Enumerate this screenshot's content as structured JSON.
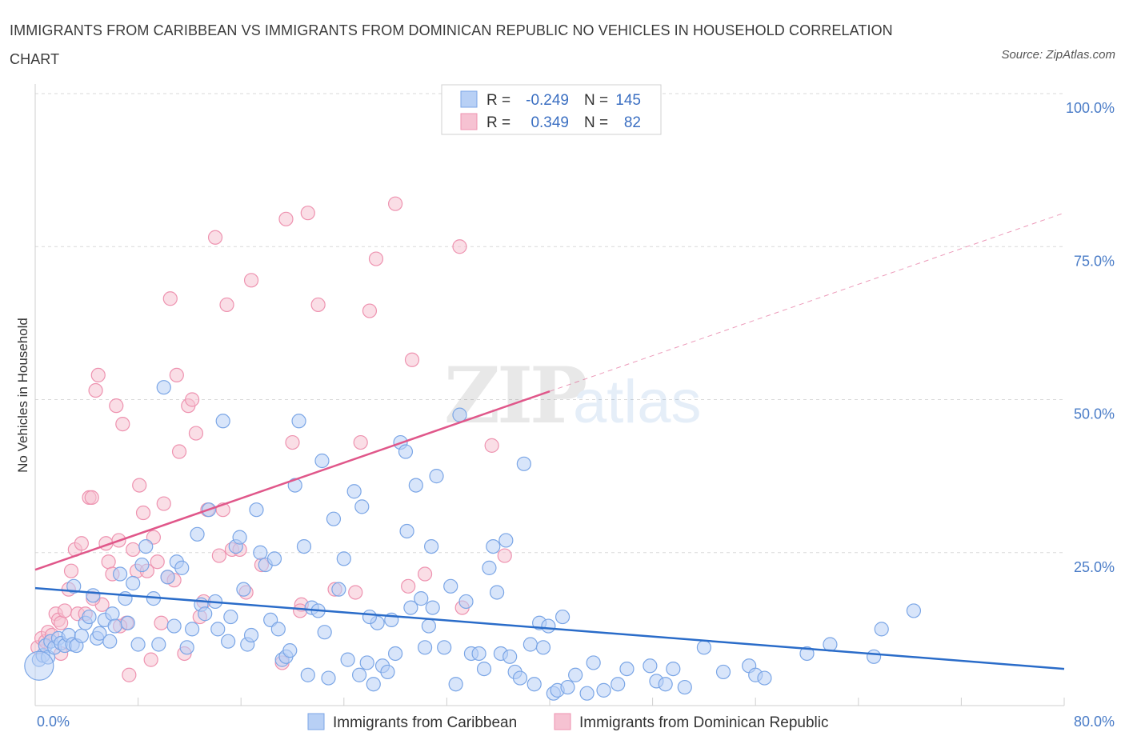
{
  "title": "IMMIGRANTS FROM CARIBBEAN VS IMMIGRANTS FROM DOMINICAN REPUBLIC NO VEHICLES IN HOUSEHOLD CORRELATION CHART",
  "source": "Source: ZipAtlas.com",
  "watermark": {
    "zip": "ZIP",
    "atlas": "atlas"
  },
  "colors": {
    "blue_fill": "#b8d0f5",
    "blue_stroke": "#7ba6e6",
    "blue_line": "#2a6cc9",
    "pink_fill": "#f6c2d2",
    "pink_stroke": "#ee93b0",
    "pink_line": "#e0578a",
    "grid": "#d9d9d9",
    "tick_text": "#4a7cc7"
  },
  "legend": {
    "rows": [
      {
        "r_label": "R =",
        "r_value": "-0.249",
        "n_label": "N =",
        "n_value": "145"
      },
      {
        "r_label": "R =",
        "r_value": "0.349",
        "n_label": "N =",
        "n_value": "82"
      }
    ]
  },
  "chart_data": {
    "type": "scatter",
    "xlabel": "",
    "ylabel": "No Vehicles in Household",
    "xlim": [
      0,
      80
    ],
    "ylim": [
      0,
      100
    ],
    "x_tick_labels": [
      "0.0%",
      "80.0%"
    ],
    "y_tick_labels": [
      "25.0%",
      "50.0%",
      "75.0%",
      "100.0%"
    ],
    "y_ticks": [
      25,
      50,
      75,
      100
    ],
    "grid": true,
    "legend_position": "top-center",
    "series": [
      {
        "name": "Immigrants from Caribbean",
        "color": "#7ba6e6",
        "trend": {
          "x0": 0,
          "y0": 19.2,
          "x1": 80,
          "y1": 6.0,
          "x_solid_end": 80
        },
        "points": [
          [
            0.3,
            7.5
          ],
          [
            0.6,
            8.2
          ],
          [
            0.8,
            9.8
          ],
          [
            1.0,
            7.9
          ],
          [
            1.2,
            10.5
          ],
          [
            1.5,
            9.5
          ],
          [
            1.8,
            11.0
          ],
          [
            2.0,
            10.2
          ],
          [
            2.3,
            9.8
          ],
          [
            2.6,
            11.5
          ],
          [
            2.9,
            10.0
          ],
          [
            3.0,
            19.5
          ],
          [
            3.2,
            9.8
          ],
          [
            3.6,
            11.4
          ],
          [
            3.9,
            13.5
          ],
          [
            4.2,
            14.5
          ],
          [
            4.5,
            18.0
          ],
          [
            4.8,
            11.0
          ],
          [
            5.0,
            11.8
          ],
          [
            5.4,
            14.0
          ],
          [
            5.8,
            10.5
          ],
          [
            6.0,
            15.0
          ],
          [
            6.2,
            13.0
          ],
          [
            6.6,
            21.5
          ],
          [
            7.0,
            17.5
          ],
          [
            7.2,
            13.5
          ],
          [
            7.6,
            20.0
          ],
          [
            8.0,
            10.0
          ],
          [
            8.3,
            23.0
          ],
          [
            8.6,
            26.0
          ],
          [
            9.2,
            17.5
          ],
          [
            9.6,
            10.0
          ],
          [
            10.0,
            52.0
          ],
          [
            10.3,
            21.0
          ],
          [
            10.8,
            13.0
          ],
          [
            11.0,
            23.5
          ],
          [
            11.4,
            22.5
          ],
          [
            11.8,
            9.5
          ],
          [
            12.2,
            12.5
          ],
          [
            12.6,
            28.0
          ],
          [
            12.9,
            16.5
          ],
          [
            13.2,
            15.0
          ],
          [
            13.5,
            32.0
          ],
          [
            14.0,
            17.0
          ],
          [
            14.2,
            12.5
          ],
          [
            14.6,
            46.5
          ],
          [
            15.0,
            10.5
          ],
          [
            15.2,
            14.5
          ],
          [
            15.6,
            26.0
          ],
          [
            15.9,
            27.5
          ],
          [
            16.2,
            19.0
          ],
          [
            16.5,
            10.0
          ],
          [
            16.8,
            11.5
          ],
          [
            17.2,
            32.0
          ],
          [
            17.5,
            25.0
          ],
          [
            17.9,
            23.0
          ],
          [
            18.3,
            14.0
          ],
          [
            18.6,
            24.0
          ],
          [
            18.9,
            12.5
          ],
          [
            19.2,
            7.5
          ],
          [
            19.5,
            8.0
          ],
          [
            19.8,
            9.0
          ],
          [
            20.2,
            36.0
          ],
          [
            20.5,
            46.5
          ],
          [
            20.9,
            26.0
          ],
          [
            21.2,
            5.0
          ],
          [
            21.5,
            16.0
          ],
          [
            22.0,
            15.5
          ],
          [
            22.3,
            40.0
          ],
          [
            22.8,
            4.5
          ],
          [
            23.2,
            30.5
          ],
          [
            23.6,
            19.0
          ],
          [
            24.0,
            24.0
          ],
          [
            24.3,
            7.5
          ],
          [
            24.8,
            35.0
          ],
          [
            25.2,
            5.0
          ],
          [
            25.4,
            32.5
          ],
          [
            25.8,
            7.0
          ],
          [
            26.3,
            3.5
          ],
          [
            26.6,
            13.5
          ],
          [
            27.0,
            6.5
          ],
          [
            27.4,
            5.5
          ],
          [
            27.7,
            14.0
          ],
          [
            28.0,
            8.5
          ],
          [
            28.4,
            43.0
          ],
          [
            28.8,
            41.5
          ],
          [
            28.9,
            28.5
          ],
          [
            29.2,
            16.0
          ],
          [
            29.6,
            36.0
          ],
          [
            30.0,
            17.5
          ],
          [
            30.3,
            9.5
          ],
          [
            30.6,
            13.0
          ],
          [
            30.9,
            16.0
          ],
          [
            31.2,
            37.5
          ],
          [
            31.8,
            9.5
          ],
          [
            32.3,
            19.5
          ],
          [
            32.7,
            3.5
          ],
          [
            33.0,
            47.5
          ],
          [
            33.5,
            17.0
          ],
          [
            33.9,
            8.5
          ],
          [
            34.5,
            8.5
          ],
          [
            34.9,
            6.0
          ],
          [
            35.3,
            22.5
          ],
          [
            35.6,
            26.0
          ],
          [
            35.9,
            18.5
          ],
          [
            36.2,
            8.5
          ],
          [
            36.6,
            27.0
          ],
          [
            36.9,
            8.0
          ],
          [
            37.3,
            5.5
          ],
          [
            37.7,
            4.5
          ],
          [
            38.0,
            39.5
          ],
          [
            38.5,
            10.0
          ],
          [
            38.8,
            3.5
          ],
          [
            39.2,
            13.5
          ],
          [
            39.5,
            9.5
          ],
          [
            39.9,
            13.0
          ],
          [
            40.3,
            2.0
          ],
          [
            40.6,
            2.5
          ],
          [
            41.0,
            14.5
          ],
          [
            41.4,
            3.0
          ],
          [
            42.0,
            5.0
          ],
          [
            42.9,
            2.0
          ],
          [
            43.4,
            7.0
          ],
          [
            44.2,
            2.5
          ],
          [
            45.3,
            3.5
          ],
          [
            46.0,
            6.0
          ],
          [
            47.8,
            6.5
          ],
          [
            48.3,
            4.0
          ],
          [
            49.0,
            3.5
          ],
          [
            49.6,
            6.0
          ],
          [
            50.5,
            3.0
          ],
          [
            52.0,
            9.5
          ],
          [
            53.5,
            5.5
          ],
          [
            55.5,
            6.5
          ],
          [
            56.0,
            5.0
          ],
          [
            56.7,
            4.5
          ],
          [
            60.0,
            8.5
          ],
          [
            61.8,
            10.0
          ],
          [
            65.2,
            8.0
          ],
          [
            65.8,
            12.5
          ],
          [
            68.3,
            15.5
          ],
          [
            26.0,
            14.5
          ],
          [
            22.5,
            12.0
          ],
          [
            30.8,
            26.0
          ]
        ]
      },
      {
        "name": "Immigrants from Dominican Republic",
        "color": "#ee93b0",
        "trend": {
          "x0": 0,
          "y0": 22.2,
          "x1": 80,
          "y1": 80.5,
          "x_solid_end": 40
        },
        "points": [
          [
            0.2,
            9.5
          ],
          [
            0.5,
            11.0
          ],
          [
            0.8,
            10.5
          ],
          [
            1.0,
            12.0
          ],
          [
            1.3,
            11.5
          ],
          [
            1.6,
            15.0
          ],
          [
            1.8,
            14.0
          ],
          [
            2.0,
            13.5
          ],
          [
            2.3,
            15.5
          ],
          [
            2.6,
            19.0
          ],
          [
            2.8,
            22.0
          ],
          [
            3.1,
            25.5
          ],
          [
            3.3,
            15.0
          ],
          [
            3.6,
            26.5
          ],
          [
            3.9,
            15.0
          ],
          [
            4.2,
            34.0
          ],
          [
            4.4,
            34.0
          ],
          [
            4.7,
            51.5
          ],
          [
            4.9,
            54.0
          ],
          [
            5.2,
            16.5
          ],
          [
            5.5,
            26.5
          ],
          [
            5.7,
            23.5
          ],
          [
            6.0,
            21.5
          ],
          [
            6.3,
            49.0
          ],
          [
            6.5,
            27.0
          ],
          [
            6.8,
            46.0
          ],
          [
            7.1,
            13.5
          ],
          [
            7.3,
            5.0
          ],
          [
            7.6,
            25.5
          ],
          [
            7.9,
            22.0
          ],
          [
            8.1,
            36.0
          ],
          [
            8.4,
            31.5
          ],
          [
            8.7,
            22.0
          ],
          [
            9.0,
            7.5
          ],
          [
            9.2,
            27.5
          ],
          [
            9.5,
            23.5
          ],
          [
            9.8,
            13.5
          ],
          [
            10.0,
            33.0
          ],
          [
            10.3,
            21.0
          ],
          [
            10.5,
            66.5
          ],
          [
            10.8,
            20.5
          ],
          [
            11.0,
            54.0
          ],
          [
            11.2,
            41.5
          ],
          [
            11.6,
            8.5
          ],
          [
            11.9,
            49.0
          ],
          [
            12.2,
            50.0
          ],
          [
            12.5,
            44.5
          ],
          [
            12.8,
            14.5
          ],
          [
            13.1,
            17.0
          ],
          [
            13.4,
            32.0
          ],
          [
            14.0,
            76.5
          ],
          [
            14.3,
            24.5
          ],
          [
            14.6,
            32.0
          ],
          [
            14.9,
            65.5
          ],
          [
            15.3,
            25.5
          ],
          [
            15.9,
            25.5
          ],
          [
            16.4,
            18.5
          ],
          [
            16.8,
            69.5
          ],
          [
            17.6,
            23.0
          ],
          [
            19.2,
            7.0
          ],
          [
            19.5,
            79.5
          ],
          [
            20.0,
            43.0
          ],
          [
            20.7,
            16.5
          ],
          [
            21.2,
            80.5
          ],
          [
            22.0,
            65.5
          ],
          [
            23.3,
            19.0
          ],
          [
            24.9,
            18.5
          ],
          [
            25.3,
            43.0
          ],
          [
            26.0,
            64.5
          ],
          [
            26.5,
            73.0
          ],
          [
            28.0,
            82.0
          ],
          [
            29.0,
            19.5
          ],
          [
            29.3,
            56.5
          ],
          [
            30.3,
            21.5
          ],
          [
            33.0,
            75.0
          ],
          [
            33.2,
            16.0
          ],
          [
            35.5,
            42.5
          ],
          [
            36.5,
            24.5
          ],
          [
            4.5,
            17.5
          ],
          [
            6.6,
            13.0
          ],
          [
            20.6,
            15.5
          ],
          [
            2.0,
            8.5
          ]
        ]
      }
    ]
  },
  "bottom_legend": [
    "Immigrants from Caribbean",
    "Immigrants from Dominican Republic"
  ]
}
